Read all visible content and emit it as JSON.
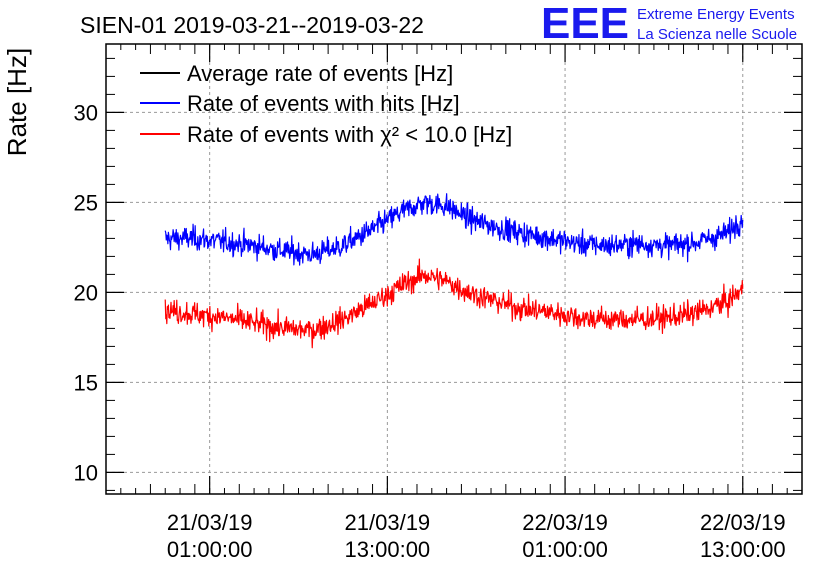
{
  "logo": {
    "mark": "EEE",
    "line1": "Extreme Energy Events",
    "line2": "La Scienza nelle Scuole",
    "color": "#1a1aee"
  },
  "chart_data": {
    "type": "line",
    "title": "SIEN-01 2019-03-21--2019-03-22",
    "xlabel": "",
    "ylabel": "Rate [Hz]",
    "ylim": [
      8.8,
      33.8
    ],
    "xlim": [
      "2019-03-20 18:00:00",
      "2019-03-22 17:00:00"
    ],
    "grid": true,
    "legend_position": "top-left",
    "y_ticks": [
      10,
      15,
      20,
      25,
      30
    ],
    "x_ticks": [
      {
        "date": "21/03/19",
        "time": "01:00:00",
        "value": "2019-03-21 01:00:00"
      },
      {
        "date": "21/03/19",
        "time": "13:00:00",
        "value": "2019-03-21 13:00:00"
      },
      {
        "date": "22/03/19",
        "time": "01:00:00",
        "value": "2019-03-22 01:00:00"
      },
      {
        "date": "22/03/19",
        "time": "13:00:00",
        "value": "2019-03-22 13:00:00"
      }
    ],
    "series": [
      {
        "name": "Average rate of events [Hz]",
        "color": "#000000",
        "x": [],
        "y": []
      },
      {
        "name": "Rate of events with hits [Hz]",
        "color": "#0000ff",
        "x": [
          "2019-03-20 22:00:00",
          "2019-03-21 00:00:00",
          "2019-03-21 02:00:00",
          "2019-03-21 04:00:00",
          "2019-03-21 06:00:00",
          "2019-03-21 08:00:00",
          "2019-03-21 10:00:00",
          "2019-03-21 12:00:00",
          "2019-03-21 14:00:00",
          "2019-03-21 15:30:00",
          "2019-03-21 17:00:00",
          "2019-03-21 18:30:00",
          "2019-03-21 20:00:00",
          "2019-03-21 22:00:00",
          "2019-03-22 00:00:00",
          "2019-03-22 02:00:00",
          "2019-03-22 04:00:00",
          "2019-03-22 06:00:00",
          "2019-03-22 08:00:00",
          "2019-03-22 10:00:00",
          "2019-03-22 12:00:00",
          "2019-03-22 13:00:00"
        ],
        "y": [
          23.0,
          23.0,
          22.8,
          22.6,
          22.3,
          22.1,
          22.6,
          23.5,
          24.5,
          25.0,
          24.8,
          24.1,
          23.7,
          23.3,
          23.0,
          22.7,
          22.6,
          22.7,
          22.6,
          22.8,
          23.3,
          24.2
        ]
      },
      {
        "name": "Rate of events with χ² < 10.0 [Hz]",
        "color": "#ff0000",
        "x": [
          "2019-03-20 22:00:00",
          "2019-03-21 00:00:00",
          "2019-03-21 02:00:00",
          "2019-03-21 04:00:00",
          "2019-03-21 06:00:00",
          "2019-03-21 08:00:00",
          "2019-03-21 10:00:00",
          "2019-03-21 12:00:00",
          "2019-03-21 14:00:00",
          "2019-03-21 15:30:00",
          "2019-03-21 17:00:00",
          "2019-03-21 18:30:00",
          "2019-03-21 20:00:00",
          "2019-03-21 22:00:00",
          "2019-03-22 00:00:00",
          "2019-03-22 02:00:00",
          "2019-03-22 04:00:00",
          "2019-03-22 06:00:00",
          "2019-03-22 08:00:00",
          "2019-03-22 10:00:00",
          "2019-03-22 12:00:00",
          "2019-03-22 13:00:00"
        ],
        "y": [
          19.0,
          18.8,
          18.6,
          18.3,
          18.0,
          17.9,
          18.5,
          19.4,
          20.4,
          21.0,
          20.6,
          20.0,
          19.6,
          19.1,
          18.9,
          18.6,
          18.5,
          18.5,
          18.6,
          18.9,
          19.5,
          20.2
        ]
      }
    ]
  }
}
